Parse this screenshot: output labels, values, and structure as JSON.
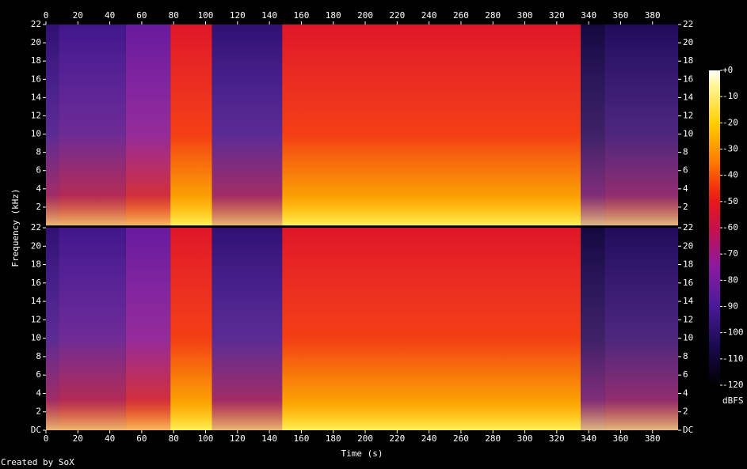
{
  "chart_data": {
    "type": "spectrogram",
    "xlabel": "Time (s)",
    "ylabel": "Frequency (kHz)",
    "colorbar_label": "dBFS",
    "footer": "Created by SoX",
    "xlim": [
      0,
      396
    ],
    "xticks": [
      0,
      20,
      40,
      60,
      80,
      100,
      120,
      140,
      160,
      180,
      200,
      220,
      240,
      260,
      280,
      300,
      320,
      340,
      360,
      380
    ],
    "ylim": [
      0,
      22
    ],
    "yticks_top": [
      2,
      4,
      6,
      8,
      10,
      12,
      14,
      16,
      18,
      20,
      22
    ],
    "yticks_bottom": [
      {
        "value": 0,
        "label": "DC"
      },
      2,
      4,
      6,
      8,
      10,
      12,
      14,
      16,
      18,
      20,
      22
    ],
    "clim": [
      -120,
      0
    ],
    "cticks": [
      {
        "value": 0,
        "label": "+0"
      },
      -10,
      -20,
      -30,
      -40,
      -50,
      -60,
      -70,
      -80,
      -90,
      -100,
      -110,
      -120
    ],
    "time_edges": [
      0,
      8,
      50,
      78,
      104,
      148,
      335,
      350,
      396
    ],
    "levels": [
      -90,
      -85,
      -75,
      -45,
      -90,
      -45,
      -100,
      -95
    ]
  }
}
